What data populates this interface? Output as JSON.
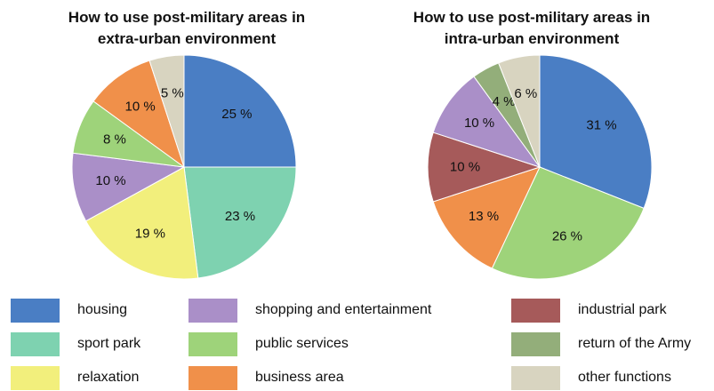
{
  "chart_data": [
    {
      "type": "pie",
      "title": "How to use post-military areas in extra-urban environment",
      "title_lines": [
        "How to use post-military areas in",
        "extra-urban environment"
      ],
      "slices": [
        {
          "name": "housing",
          "value": 25,
          "label": "25 %",
          "color": "#4A7EC4"
        },
        {
          "name": "sport park",
          "value": 23,
          "label": "23 %",
          "color": "#7ED2B0"
        },
        {
          "name": "relaxation",
          "value": 19,
          "label": "19 %",
          "color": "#F2EF7C"
        },
        {
          "name": "shopping and entertainment",
          "value": 10,
          "label": "10 %",
          "color": "#AA8FC8"
        },
        {
          "name": "public services",
          "value": 8,
          "label": "8 %",
          "color": "#9ED37A"
        },
        {
          "name": "business area",
          "value": 10,
          "label": "10 %",
          "color": "#F0904A"
        },
        {
          "name": "other functions",
          "value": 5,
          "label": "5 %",
          "color": "#D8D4C0"
        }
      ]
    },
    {
      "type": "pie",
      "title": "How to use post-military areas in intra-urban environment",
      "title_lines": [
        "How to use post-military areas in",
        "intra-urban environment"
      ],
      "slices": [
        {
          "name": "housing",
          "value": 31,
          "label": "31 %",
          "color": "#4A7EC4"
        },
        {
          "name": "public services",
          "value": 26,
          "label": "26 %",
          "color": "#9ED37A"
        },
        {
          "name": "business area",
          "value": 13,
          "label": "13 %",
          "color": "#F0904A"
        },
        {
          "name": "industrial park",
          "value": 10,
          "label": "10 %",
          "color": "#A65A5A"
        },
        {
          "name": "shopping and entertainment",
          "value": 10,
          "label": "10 %",
          "color": "#AA8FC8"
        },
        {
          "name": "return of the Army",
          "value": 4,
          "label": "4 %",
          "color": "#93AE7A"
        },
        {
          "name": "other functions",
          "value": 6,
          "label": "6 %",
          "color": "#D8D4C0"
        }
      ]
    }
  ],
  "legend": {
    "items": [
      {
        "label": "housing",
        "color": "#4A7EC4"
      },
      {
        "label": "sport park",
        "color": "#7ED2B0"
      },
      {
        "label": "relaxation",
        "color": "#F2EF7C"
      },
      {
        "label": "shopping and entertainment",
        "color": "#AA8FC8"
      },
      {
        "label": "public services",
        "color": "#9ED37A"
      },
      {
        "label": "business area",
        "color": "#F0904A"
      },
      {
        "label": "industrial park",
        "color": "#A65A5A"
      },
      {
        "label": "return of the Army",
        "color": "#93AE7A"
      },
      {
        "label": "other functions",
        "color": "#D8D4C0"
      }
    ]
  }
}
